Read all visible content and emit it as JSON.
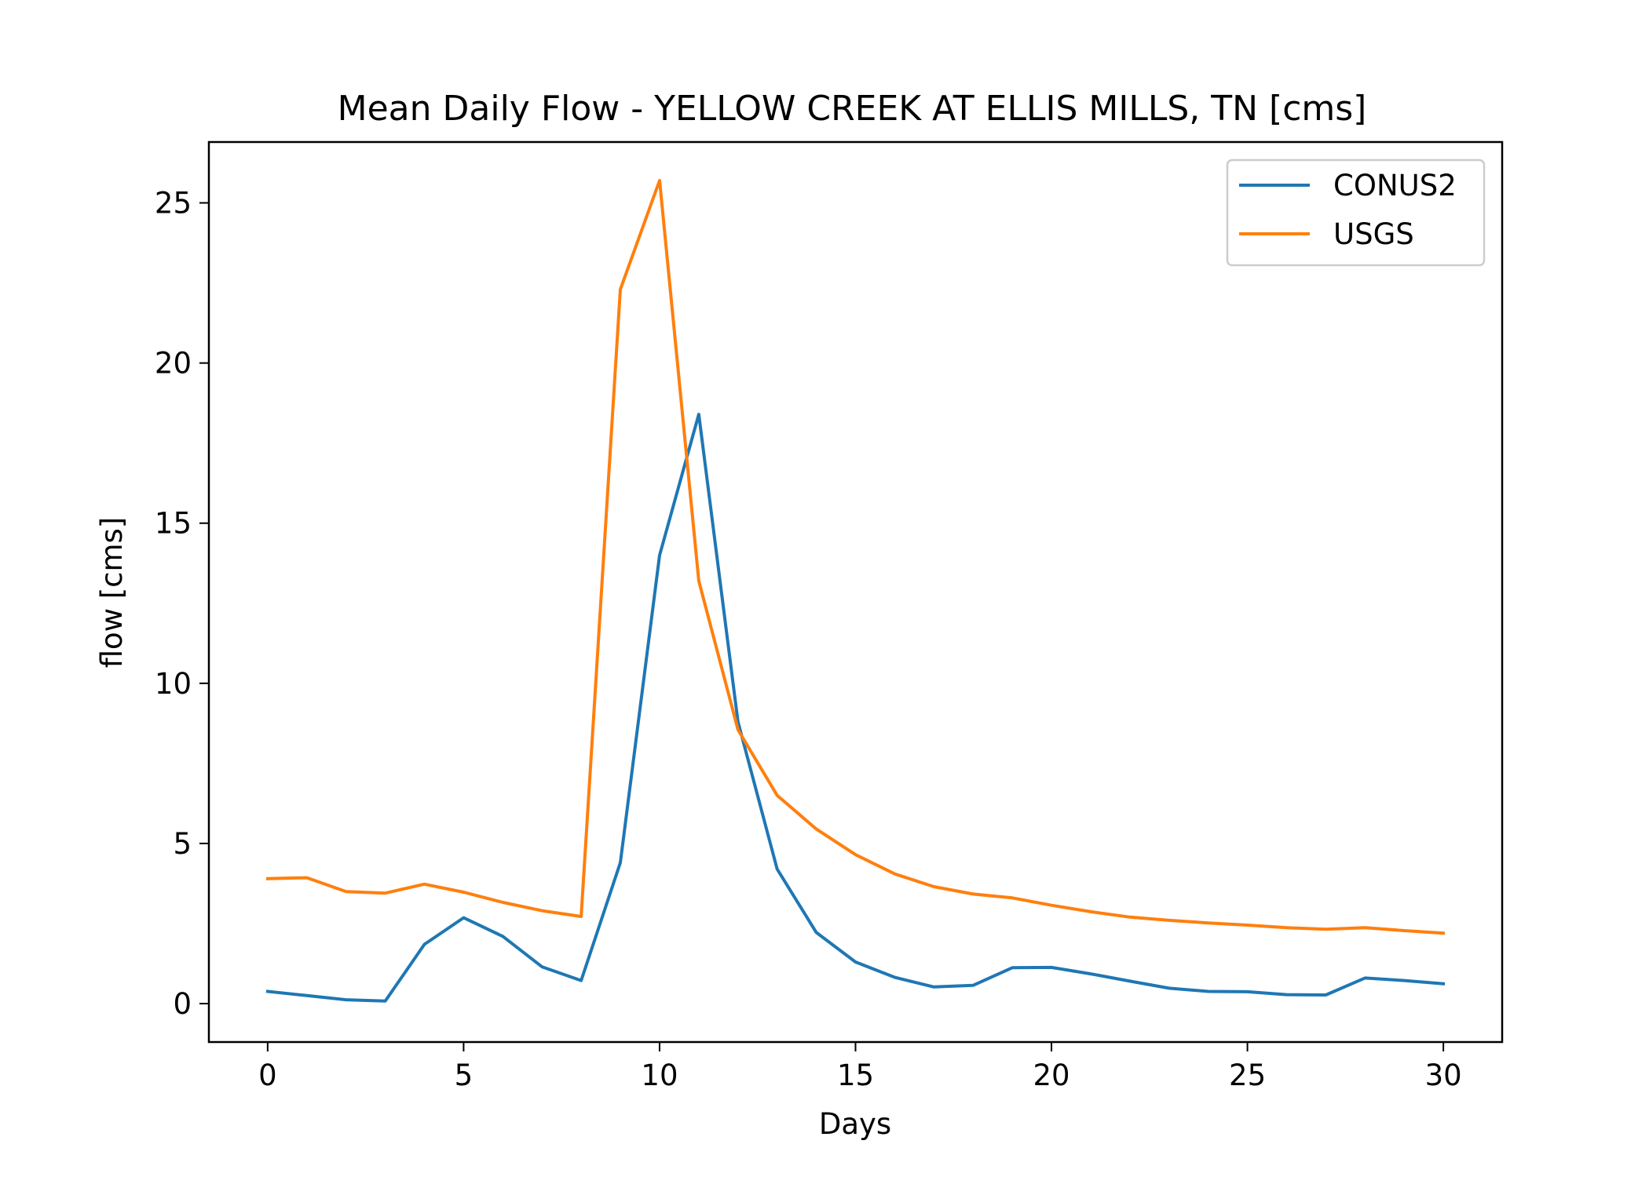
{
  "chart_data": {
    "type": "line",
    "title": "Mean Daily Flow - YELLOW CREEK AT ELLIS MILLS, TN [cms]",
    "xlabel": "Days",
    "ylabel": "flow [cms]",
    "xlim": [
      -1.5,
      31.5
    ],
    "ylim": [
      -1.2,
      26.9
    ],
    "xticks": [
      0,
      5,
      10,
      15,
      20,
      25,
      30
    ],
    "yticks": [
      0,
      5,
      10,
      15,
      20,
      25
    ],
    "grid": false,
    "legend_position": "top-right",
    "x": [
      0,
      1,
      2,
      3,
      4,
      5,
      6,
      7,
      8,
      9,
      10,
      11,
      12,
      13,
      14,
      15,
      16,
      17,
      18,
      19,
      20,
      21,
      22,
      23,
      24,
      25,
      26,
      27,
      28,
      29,
      30
    ],
    "series": [
      {
        "name": "CONUS2",
        "color": "#1f77b4",
        "values": [
          0.38,
          0.25,
          0.12,
          0.08,
          1.85,
          2.68,
          2.1,
          1.15,
          0.72,
          4.4,
          14.0,
          18.4,
          8.8,
          4.2,
          2.22,
          1.3,
          0.82,
          0.52,
          0.57,
          1.12,
          1.13,
          0.93,
          0.7,
          0.48,
          0.38,
          0.37,
          0.28,
          0.27,
          0.8,
          0.72,
          0.62
        ]
      },
      {
        "name": "USGS",
        "color": "#ff7f0e",
        "values": [
          3.9,
          3.93,
          3.5,
          3.45,
          3.73,
          3.48,
          3.16,
          2.9,
          2.72,
          22.3,
          25.7,
          13.2,
          8.55,
          6.5,
          5.45,
          4.65,
          4.05,
          3.65,
          3.42,
          3.3,
          3.07,
          2.87,
          2.7,
          2.6,
          2.52,
          2.45,
          2.37,
          2.32,
          2.37,
          2.28,
          2.2
        ]
      }
    ]
  }
}
